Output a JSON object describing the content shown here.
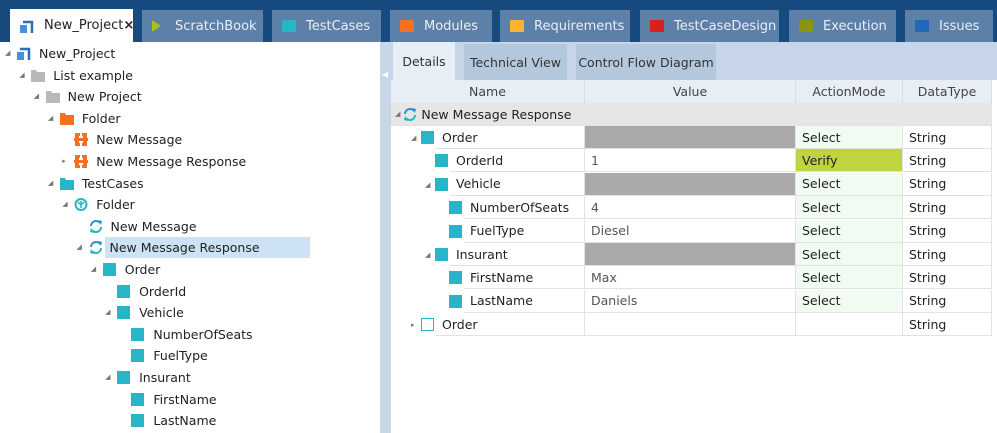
{
  "colors": {
    "titlebar": "#174a7e",
    "tab_inactive": "#5d80a8",
    "selection": "#cde3f5",
    "verify": "#c0d440",
    "select_bg": "#f2fbf2",
    "empty_value": "#a9a9a9",
    "module": "#27b5c7"
  },
  "tabs": [
    {
      "label": "New_Project",
      "icon": "project-icon",
      "color": "#2f6fba",
      "active": true,
      "close": "×"
    },
    {
      "label": "ScratchBook",
      "icon": "play-icon",
      "color": "#a6c11c"
    },
    {
      "label": "TestCases",
      "icon": "folder-icon",
      "color": "#27b5c7"
    },
    {
      "label": "Modules",
      "icon": "folder-icon",
      "color": "#f57020"
    },
    {
      "label": "Requirements",
      "icon": "folder-icon",
      "color": "#f9b233"
    },
    {
      "label": "TestCaseDesign",
      "icon": "folder-icon",
      "color": "#d9201a"
    },
    {
      "label": "Execution",
      "icon": "folder-icon",
      "color": "#8a9410"
    },
    {
      "label": "Issues",
      "icon": "folder-icon",
      "color": "#2168b8"
    }
  ],
  "tree": [
    {
      "label": "New_Project",
      "level": 0,
      "icon": "project-icon",
      "expanded": true
    },
    {
      "label": "List example",
      "level": 1,
      "icon": "gray-folder-icon",
      "expanded": true
    },
    {
      "label": "New Project",
      "level": 2,
      "icon": "gray-folder-icon",
      "expanded": true
    },
    {
      "label": "Folder",
      "level": 3,
      "icon": "orange-folder-icon",
      "expanded": true
    },
    {
      "label": "New Message",
      "level": 4,
      "icon": "module-icon"
    },
    {
      "label": "New Message Response",
      "level": 4,
      "icon": "module-icon",
      "collapsed": true
    },
    {
      "label": "TestCases",
      "level": 3,
      "icon": "teal-folder-icon",
      "expanded": true
    },
    {
      "label": "Folder",
      "level": 4,
      "icon": "testcase-folder-icon",
      "expanded": true
    },
    {
      "label": "New Message",
      "level": 5,
      "icon": "sync-icon"
    },
    {
      "label": "New Message Response",
      "level": 5,
      "icon": "sync-icon",
      "expanded": true,
      "selected": true
    },
    {
      "label": "Order",
      "level": 6,
      "icon": "step-icon",
      "expanded": true
    },
    {
      "label": "OrderId",
      "level": 7,
      "icon": "step-icon"
    },
    {
      "label": "Vehicle",
      "level": 7,
      "icon": "step-icon",
      "expanded": true
    },
    {
      "label": "NumberOfSeats",
      "level": 8,
      "icon": "step-icon"
    },
    {
      "label": "FuelType",
      "level": 8,
      "icon": "step-icon"
    },
    {
      "label": "Insurant",
      "level": 7,
      "icon": "step-icon",
      "expanded": true
    },
    {
      "label": "FirstName",
      "level": 8,
      "icon": "step-icon"
    },
    {
      "label": "LastName",
      "level": 8,
      "icon": "step-icon"
    }
  ],
  "detail_tabs": [
    {
      "label": "Details",
      "active": true
    },
    {
      "label": "Technical View"
    },
    {
      "label": "Control Flow Diagram"
    }
  ],
  "columns": [
    "Name",
    "Value",
    "ActionMode",
    "DataType"
  ],
  "root": {
    "label": "New Message Response"
  },
  "rows": [
    {
      "name": "Order",
      "level": 0,
      "expanded": true,
      "value": "",
      "value_empty": true,
      "action": "Select",
      "type": "String"
    },
    {
      "name": "OrderId",
      "level": 1,
      "value": "1",
      "action": "Verify",
      "type": "String"
    },
    {
      "name": "Vehicle",
      "level": 1,
      "expanded": true,
      "value": "",
      "value_empty": true,
      "action": "Select",
      "type": "String"
    },
    {
      "name": "NumberOfSeats",
      "level": 2,
      "value": "4",
      "action": "Select",
      "type": "String"
    },
    {
      "name": "FuelType",
      "level": 2,
      "value": "Diesel",
      "action": "Select",
      "type": "String"
    },
    {
      "name": "Insurant",
      "level": 1,
      "expanded": true,
      "value": "",
      "value_empty": true,
      "action": "Select",
      "type": "String"
    },
    {
      "name": "FirstName",
      "level": 2,
      "value": "Max",
      "action": "Select",
      "type": "String"
    },
    {
      "name": "LastName",
      "level": 2,
      "value": "Daniels",
      "action": "Select",
      "type": "String"
    },
    {
      "name": "Order",
      "level": 0,
      "collapsed": true,
      "hollow": true,
      "value": "",
      "action": "",
      "type": "String"
    }
  ]
}
